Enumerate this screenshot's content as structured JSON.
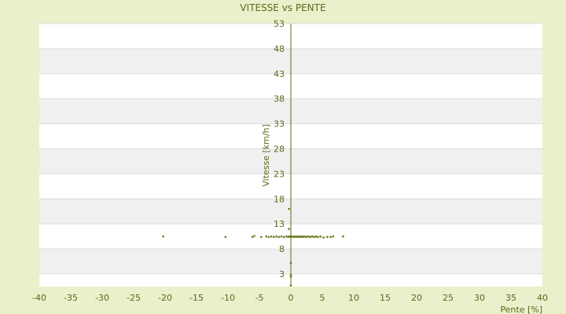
{
  "chart_data": {
    "type": "scatter",
    "title": "VITESSE vs PENTE",
    "xlabel": "Pente [%]",
    "ylabel": "Vitesse [km/h]",
    "xlim": [
      -40,
      40
    ],
    "ylim": [
      0.5,
      53
    ],
    "x_ticks": [
      "-40",
      "-35",
      "-30",
      "-25",
      "-20",
      "-15",
      "-10",
      "-5",
      "0",
      "5",
      "10",
      "15",
      "20",
      "25",
      "30",
      "35",
      "40"
    ],
    "x_tick_values": [
      -40,
      -35,
      -30,
      -25,
      -20,
      -15,
      -10,
      -5,
      0,
      5,
      10,
      15,
      20,
      25,
      30,
      35,
      40
    ],
    "y_ticks": [
      "3",
      "8",
      "13",
      "18",
      "23",
      "28",
      "33",
      "38",
      "43",
      "48",
      "53"
    ],
    "y_tick_values": [
      3,
      8,
      13,
      18,
      23,
      28,
      33,
      38,
      43,
      48,
      53
    ],
    "grid": true,
    "colors": {
      "background": "#eaf0cc",
      "plot_band_light": "#ffffff",
      "plot_band_dark": "#f0f0f0",
      "axis": "#5a6a1a",
      "point": "#6b7a1e"
    },
    "points": [
      [
        -20.3,
        10.5
      ],
      [
        -10.4,
        10.4
      ],
      [
        -6.1,
        10.4
      ],
      [
        -5.8,
        10.6
      ],
      [
        -4.7,
        10.4
      ],
      [
        -3.9,
        10.5
      ],
      [
        -3.5,
        10.4
      ],
      [
        -3.1,
        10.5
      ],
      [
        -2.7,
        10.4
      ],
      [
        -2.3,
        10.5
      ],
      [
        -1.9,
        10.4
      ],
      [
        -1.5,
        10.5
      ],
      [
        -1.1,
        10.4
      ],
      [
        -0.7,
        10.5
      ],
      [
        -0.4,
        10.4
      ],
      [
        -0.2,
        10.5
      ],
      [
        0.0,
        10.4
      ],
      [
        0.2,
        10.5
      ],
      [
        0.4,
        10.4
      ],
      [
        0.6,
        10.5
      ],
      [
        0.8,
        10.4
      ],
      [
        1.0,
        10.5
      ],
      [
        1.2,
        10.4
      ],
      [
        1.4,
        10.5
      ],
      [
        1.6,
        10.4
      ],
      [
        1.8,
        10.5
      ],
      [
        2.0,
        10.4
      ],
      [
        2.2,
        10.5
      ],
      [
        2.5,
        10.4
      ],
      [
        2.8,
        10.5
      ],
      [
        3.1,
        10.4
      ],
      [
        3.4,
        10.5
      ],
      [
        3.7,
        10.4
      ],
      [
        4.0,
        10.5
      ],
      [
        4.3,
        10.4
      ],
      [
        4.7,
        10.5
      ],
      [
        5.2,
        10.3
      ],
      [
        5.8,
        10.4
      ],
      [
        6.3,
        10.4
      ],
      [
        6.7,
        10.5
      ],
      [
        8.3,
        10.5
      ],
      [
        -0.3,
        16.0
      ],
      [
        -0.3,
        12.0
      ],
      [
        0.0,
        5.2
      ],
      [
        0.0,
        2.8
      ],
      [
        0.0,
        2.5
      ],
      [
        0.0,
        0.7
      ]
    ]
  }
}
